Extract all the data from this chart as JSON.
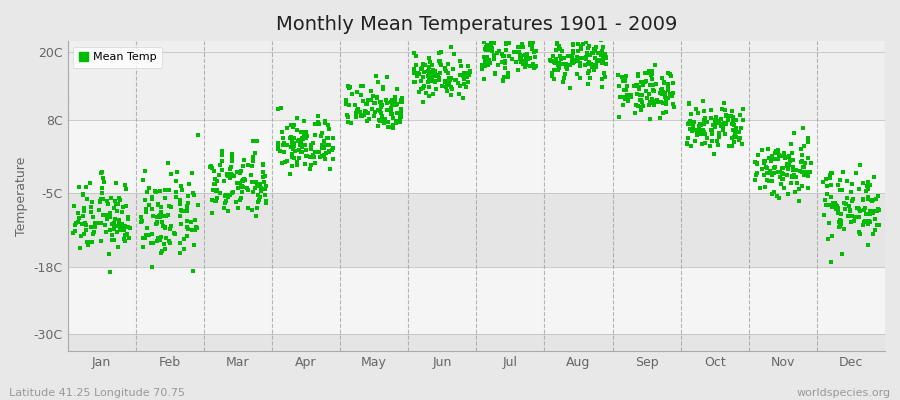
{
  "title": "Monthly Mean Temperatures 1901 - 2009",
  "ylabel": "Temperature",
  "xlabel_labels": [
    "Jan",
    "Feb",
    "Mar",
    "Apr",
    "May",
    "Jun",
    "Jul",
    "Aug",
    "Sep",
    "Oct",
    "Nov",
    "Dec"
  ],
  "ytick_labels": [
    "20C",
    "8C",
    "-5C",
    "-18C",
    "-30C"
  ],
  "ytick_values": [
    20,
    8,
    -5,
    -18,
    -30
  ],
  "ylim": [
    -33,
    22
  ],
  "dot_color": "#00bb00",
  "bg_color": "#e8e8e8",
  "plot_bg_color": "#efefef",
  "band_light_color": "#f5f5f5",
  "band_dark_color": "#e0e0e0",
  "legend_label": "Mean Temp",
  "footer_left": "Latitude 41.25 Longitude 70.75",
  "footer_right": "worldspecies.org",
  "title_fontsize": 14,
  "label_fontsize": 9,
  "footer_fontsize": 8,
  "n_years": 109,
  "monthly_means": [
    -9.5,
    -9.5,
    -3.5,
    3.5,
    10.5,
    16.0,
    19.5,
    18.5,
    13.0,
    6.5,
    -0.5,
    -7.0
  ],
  "monthly_stds": [
    3.2,
    3.8,
    3.0,
    2.5,
    2.2,
    2.0,
    1.8,
    1.8,
    2.0,
    2.2,
    2.8,
    3.2
  ],
  "dashed_color": "#999999",
  "spine_color": "#aaaaaa",
  "tick_color": "#666666"
}
